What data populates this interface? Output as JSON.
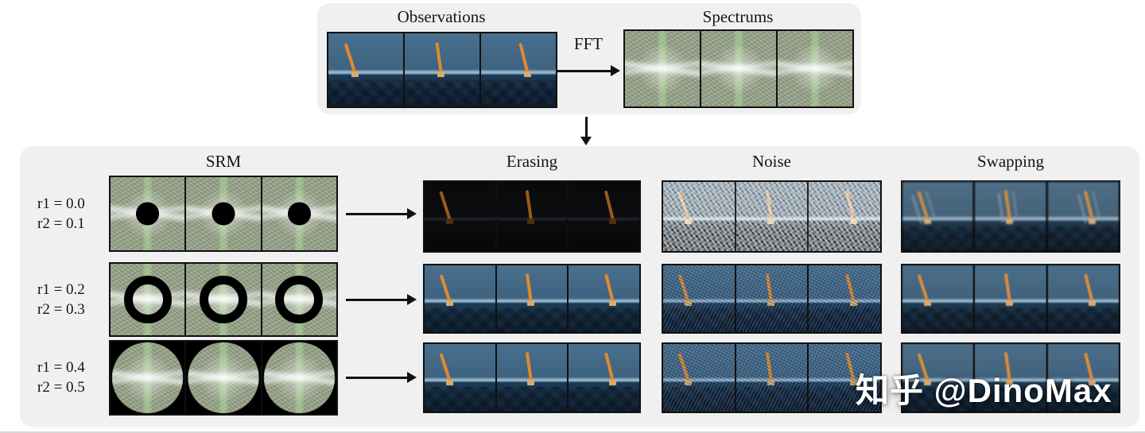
{
  "top": {
    "observations_label": "Observations",
    "fft_label": "FFT",
    "spectrums_label": "Spectrums"
  },
  "srm": {
    "title": "SRM",
    "rows": [
      {
        "r1": "r1 = 0.0",
        "r2": "r2 = 0.1",
        "mask": "disk"
      },
      {
        "r1": "r1 = 0.2",
        "r2": "r2 = 0.3",
        "mask": "ring"
      },
      {
        "r1": "r1 = 0.4",
        "r2": "r2 = 0.5",
        "mask": "outside-circle"
      }
    ]
  },
  "augmentations": {
    "columns": [
      "Erasing",
      "Noise",
      "Swapping"
    ]
  },
  "watermark": {
    "text": "知乎 @DinoMax"
  },
  "colors": {
    "panel_gray": "#f0f0f0",
    "pole_orange": "#e08a2e",
    "scene_blue": "#3e6381",
    "spectrum_green": "#97a289",
    "arrow_black": "#111111"
  }
}
